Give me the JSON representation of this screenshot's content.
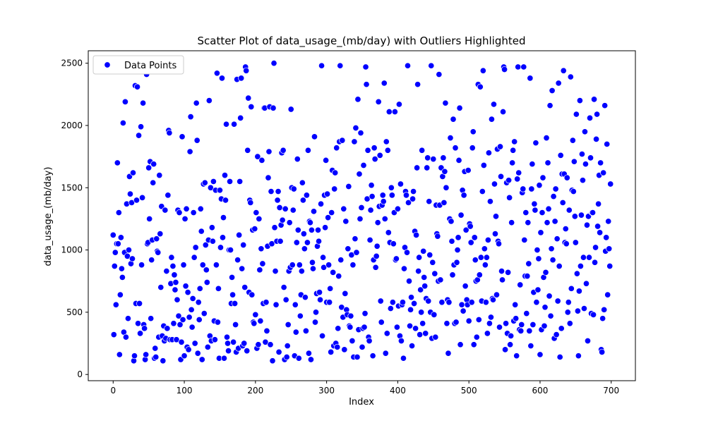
{
  "chart_data": {
    "type": "scatter",
    "title": "Scatter Plot of data_usage_(mb/day) with Outliers Highlighted",
    "x_label": "Index",
    "y_label": "data_usage_(mb/day)",
    "xlim": [
      -35,
      734
    ],
    "xticks": [
      0,
      100,
      200,
      300,
      400,
      500,
      600,
      700
    ],
    "ylim": [
      -50,
      2600
    ],
    "yticks": [
      0,
      500,
      1000,
      1500,
      2000,
      2500
    ],
    "legend_position": "upper left",
    "series": [
      {
        "name": "Data Points",
        "color": "#0000ff",
        "values": [
          1120,
          320,
          870,
          980,
          560,
          1050,
          1700,
          1050,
          1300,
          160,
          640,
          1100,
          850,
          780,
          2020,
          340,
          980,
          2190,
          300,
          1370,
          950,
          450,
          1000,
          1590,
          1450,
          890,
          1380,
          930,
          1620,
          110,
          150,
          2320,
          570,
          1400,
          2310,
          410,
          1920,
          570,
          330,
          1990,
          880,
          1420,
          2180,
          400,
          370,
          120,
          160,
          2410,
          1050,
          1060,
          1660,
          1250,
          1710,
          450,
          920,
          1080,
          1540,
          1690,
          130,
          210,
          140,
          1090,
          990,
          980,
          300,
          1600,
          1130,
          700,
          1350,
          310,
          110,
          390,
          270,
          1320,
          290,
          830,
          370,
          1440,
          1960,
          1940,
          280,
          730,
          940,
          280,
          870,
          410,
          800,
          680,
          740,
          280,
          600,
          1320,
          470,
          1300,
          400,
          120,
          260,
          1910,
          440,
          880,
          150,
          1250,
          710,
          1330,
          220,
          660,
          200,
          460,
          1790,
          2070,
          520,
          380,
          610,
          1300,
          940,
          250,
          1020,
          2180,
          1880,
          170,
          580,
          440,
          690,
          1330,
          1150,
          120,
          880,
          1530,
          490,
          1540,
          1040,
          840,
          740,
          220,
          1080,
          2200,
          310,
          1500,
          270,
          1180,
          1070,
          1550,
          430,
          280,
          1480,
          880,
          2420,
          420,
          690,
          130,
          1480,
          1020,
          1410,
          2380,
          1100,
          1260,
          130,
          1600,
          1400,
          2010,
          300,
          250,
          190,
          1000,
          1550,
          1000,
          570,
          780,
          640,
          260,
          2010,
          570,
          400,
          180,
          2370,
          920,
          210,
          1120,
          1550,
          2060,
          2380,
          850,
          230,
          1040,
          250,
          700,
          2470,
          2440,
          190,
          1800,
          2220,
          660,
          1400,
          1380,
          2150,
          640,
          1160,
          420,
          410,
          1170,
          480,
          1300,
          210,
          1750,
          240,
          1250,
          840,
          430,
          1010,
          1720,
          890,
          570,
          2140,
          2140,
          260,
          580,
          350,
          1030,
          1580,
          1790,
          2150,
          240,
          1470,
          1050,
          110,
          2140,
          2500,
          1180,
          830,
          560,
          1070,
          1400,
          1470,
          180,
          1340,
          1070,
          1200,
          1780,
          1240,
          1800,
          700,
          120,
          1330,
          600,
          140,
          230,
          400,
          830,
          1220,
          860,
          2130,
          1500,
          880,
          1320,
          1490,
          150,
          560,
          340,
          1060,
          1730,
          1160,
          130,
          880,
          470,
          640,
          830,
          1540,
          1400,
          1130,
          1010,
          620,
          350,
          1440,
          1060,
          1800,
          170,
          1230,
          1220,
          120,
          1160,
          900,
          850,
          1310,
          1910,
          420,
          500,
          650,
          1030,
          1160,
          1070,
          660,
          600,
          1370,
          2480,
          310,
          940,
          860,
          1440,
          1180,
          1720,
          580,
          1450,
          1260,
          880,
          580,
          690,
          180,
          1300,
          1640,
          820,
          230,
          1490,
          1620,
          250,
          1820,
          220,
          370,
          790,
          1870,
          2480,
          920,
          540,
          1880,
          460,
          1330,
          200,
          650,
          1230,
          520,
          480,
          1010,
          1510,
          390,
          380,
          470,
          960,
          270,
          880,
          140,
          1870,
          1090,
          1980,
          980,
          140,
          2210,
          360,
          1610,
          1250,
          1940,
          1340,
          220,
          370,
          1680,
          380,
          490,
          2470,
          2330,
          1410,
          1800,
          300,
          270,
          1080,
          1320,
          1520,
          1430,
          150,
          920,
          1820,
          1730,
          860,
          950,
          1030,
          1220,
          2190,
          1350,
          1760,
          590,
          420,
          1360,
          1440,
          1390,
          2340,
          1250,
          170,
          1870,
          330,
          1800,
          1140,
          2110,
          1060,
          530,
          1500,
          1440,
          580,
          1050,
          1300,
          2110,
          920,
          930,
          380,
          1330,
          550,
          2170,
          310,
          1530,
          270,
          560,
          580,
          130,
          850,
          1020,
          1470,
          1440,
          980,
          2480,
          1380,
          750,
          390,
          520,
          620,
          230,
          1410,
          1470,
          570,
          1150,
          370,
          1120,
          1660,
          2330,
          830,
          940,
          320,
          680,
          500,
          1800,
          410,
          990,
          780,
          710,
          330,
          610,
          1660,
          1740,
          590,
          1390,
          960,
          500,
          2480,
          290,
          900,
          1730,
          480,
          810,
          300,
          1360,
          1130,
          1110,
          750,
          2410,
          1360,
          760,
          1660,
          580,
          1590,
          1740,
          1380,
          1630,
          2180,
          1500,
          410,
          600,
          170,
          580,
          1250,
          1900,
          1230,
          1070,
          800,
          2050,
          880,
          410,
          1820,
          420,
          900,
          1000,
          1100,
          1720,
          2140,
          240,
          1280,
          560,
          1480,
          510,
          1440,
          1630,
          710,
          1160,
          600,
          560,
          1640,
          430,
          1210,
          1190,
          1060,
          580,
          1820,
          1950,
          240,
          1100,
          920,
          750,
          300,
          760,
          2330,
          440,
          800,
          2310,
          940,
          590,
          1470,
          2440,
          1680,
          1010,
          880,
          580,
          940,
          330,
          1080,
          1780,
          410,
          1390,
          460,
          2050,
          610,
          600,
          2170,
          1530,
          1130,
          1270,
          640,
          1810,
          1070,
          1050,
          380,
          1830,
          1590,
          830,
          760,
          2110,
          2470,
          2450,
          200,
          410,
          1540,
          330,
          820,
          1560,
          1420,
          240,
          310,
          1220,
          1700,
          1800,
          430,
          1870,
          560,
          450,
          150,
          1570,
          2470,
          1620,
          360,
          720,
          350,
          400,
          1460,
          1490,
          2470,
          1080,
          790,
          1300,
          490,
          790,
          1220,
          890,
          350,
          2380,
          230,
          1490,
          1690,
          400,
          660,
          1370,
          1320,
          1860,
          580,
          1000,
          680,
          930,
          1520,
          160,
          1140,
          360,
          1300,
          1580,
          780,
          390,
          540,
          820,
          1900,
          1220,
          1700,
          1330,
          630,
          2160,
          470,
          1010,
          2280,
          920,
          1430,
          290,
          1230,
          1490,
          320,
          1090,
          590,
          2340,
          870,
          140,
          1760,
          370,
          1610,
          1380,
          2440,
          1610,
          1060,
          1170,
          1050,
          1580,
          500,
          580,
          1320,
          410,
          2390,
          690,
          1480,
          1880,
          1470,
          1710,
          1270,
          1060,
          2090,
          810,
          510,
          150,
          670,
          2200,
          870,
          1280,
          1770,
          1560,
          940,
          530,
          1950,
          1690,
          730,
          1200,
          270,
          1270,
          940,
          2060,
          1740,
          490,
          1300,
          1300,
          480,
          2210,
          900,
          1020,
          1890,
          2090,
          1190,
          1370,
          1600,
          1140,
          1700,
          200,
          180,
          450,
          1620,
          520,
          2160,
          990,
          1100,
          1850,
          640,
          1230,
          1010,
          870,
          1530
        ]
      }
    ]
  }
}
